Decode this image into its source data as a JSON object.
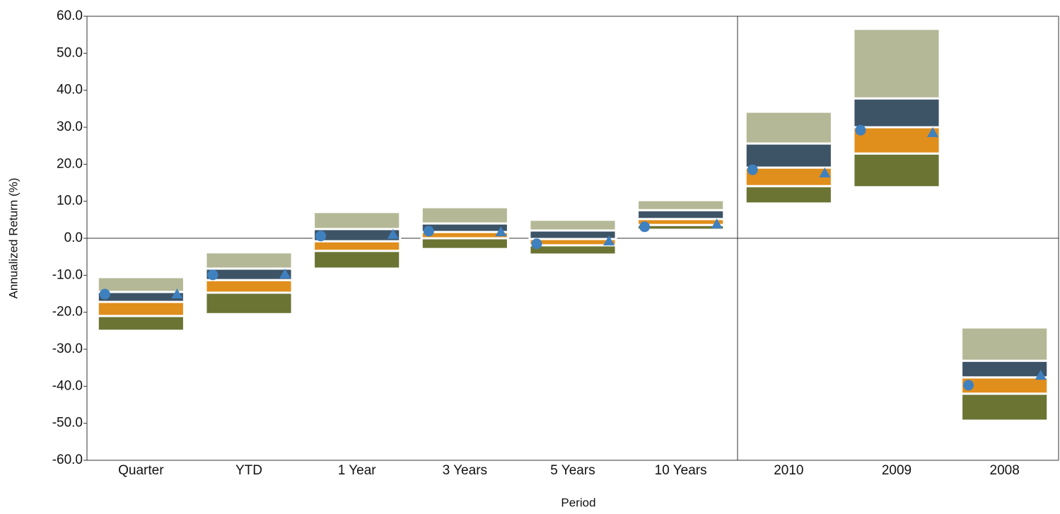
{
  "chart_data": {
    "type": "floating_bar",
    "y_label": "Annualized Return (%)",
    "x_label": "Period",
    "categories": [
      "Quarter",
      "YTD",
      "1 Year",
      "3 Years",
      "5 Years",
      "10 Years",
      "2010",
      "2009",
      "2008"
    ],
    "ranges": [
      [
        -25.0,
        -21.0,
        -17.2,
        -14.5,
        -10.5
      ],
      [
        -20.5,
        -14.7,
        -11.3,
        -8.2,
        -3.8
      ],
      [
        -8.2,
        -3.4,
        -0.8,
        2.5,
        7.1
      ],
      [
        -2.9,
        0.0,
        1.7,
        4.0,
        8.4
      ],
      [
        -4.4,
        -1.9,
        -0.2,
        2.1,
        5.0
      ],
      [
        2.3,
        3.6,
        5.2,
        7.6,
        10.3
      ],
      [
        9.4,
        14.1,
        19.1,
        25.6,
        34.2
      ],
      [
        13.8,
        22.9,
        30.0,
        37.8,
        56.6
      ],
      [
        -49.3,
        -42.0,
        -37.6,
        -33.1,
        -24.1
      ]
    ],
    "band_colors": [
      "#6b7433",
      "#e08e1c",
      "#3d5466",
      "#b4b896"
    ],
    "markers": [
      {
        "shape": "circle",
        "color": "#3f80bf",
        "values": [
          -15.1,
          -9.9,
          0.6,
          1.9,
          -1.5,
          3.1,
          18.5,
          29.2,
          -39.7
        ]
      },
      {
        "shape": "triangle",
        "color": "#3f80bf",
        "values": [
          -15.1,
          -9.7,
          1.0,
          1.7,
          -0.8,
          3.8,
          17.6,
          28.5,
          -37.1
        ]
      }
    ],
    "ylim": [
      -60,
      60
    ],
    "yticks": [
      {
        "value": 60,
        "label": "60.0"
      },
      {
        "value": 50,
        "label": "50.0"
      },
      {
        "value": 40,
        "label": "40.0"
      },
      {
        "value": 30,
        "label": "30.0"
      },
      {
        "value": 20,
        "label": "20.0"
      },
      {
        "value": 10,
        "label": "10.0"
      },
      {
        "value": 0,
        "label": "0.0"
      },
      {
        "value": -10,
        "label": "-10.0"
      },
      {
        "value": -20,
        "label": "-20.0"
      },
      {
        "value": -30,
        "label": "-30.0"
      },
      {
        "value": -40,
        "label": "-40.0"
      },
      {
        "value": -50,
        "label": "-50.0"
      },
      {
        "value": -60,
        "label": "-60.0"
      }
    ]
  }
}
